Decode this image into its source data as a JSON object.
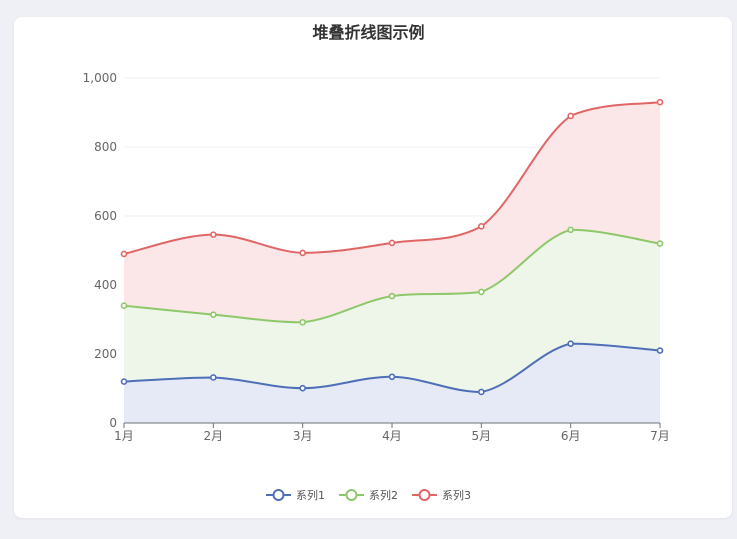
{
  "chart_data": {
    "type": "line",
    "stacked": true,
    "smooth": true,
    "area": true,
    "title": "堆叠折线图示例",
    "categories": [
      "1月",
      "2月",
      "3月",
      "4月",
      "5月",
      "6月",
      "7月"
    ],
    "ylim": [
      0,
      1000
    ],
    "yticks": [
      0,
      200,
      400,
      600,
      800,
      1000
    ],
    "ytick_labels": [
      "0",
      "200",
      "400",
      "600",
      "800",
      "1,000"
    ],
    "grid": true,
    "legend_position": "bottom",
    "series": [
      {
        "name": "系列1",
        "color": "#4e6fb7",
        "fill": "#e6eaf6",
        "values": [
          120,
          132,
          101,
          134,
          90,
          230,
          210
        ]
      },
      {
        "name": "系列2",
        "color": "#8ec86a",
        "fill": "#eef6e9",
        "values": [
          220,
          182,
          191,
          234,
          290,
          330,
          310
        ]
      },
      {
        "name": "系列3",
        "color": "#e06666",
        "fill": "#fbe7e8",
        "values": [
          150,
          232,
          201,
          154,
          190,
          330,
          410
        ]
      }
    ]
  }
}
